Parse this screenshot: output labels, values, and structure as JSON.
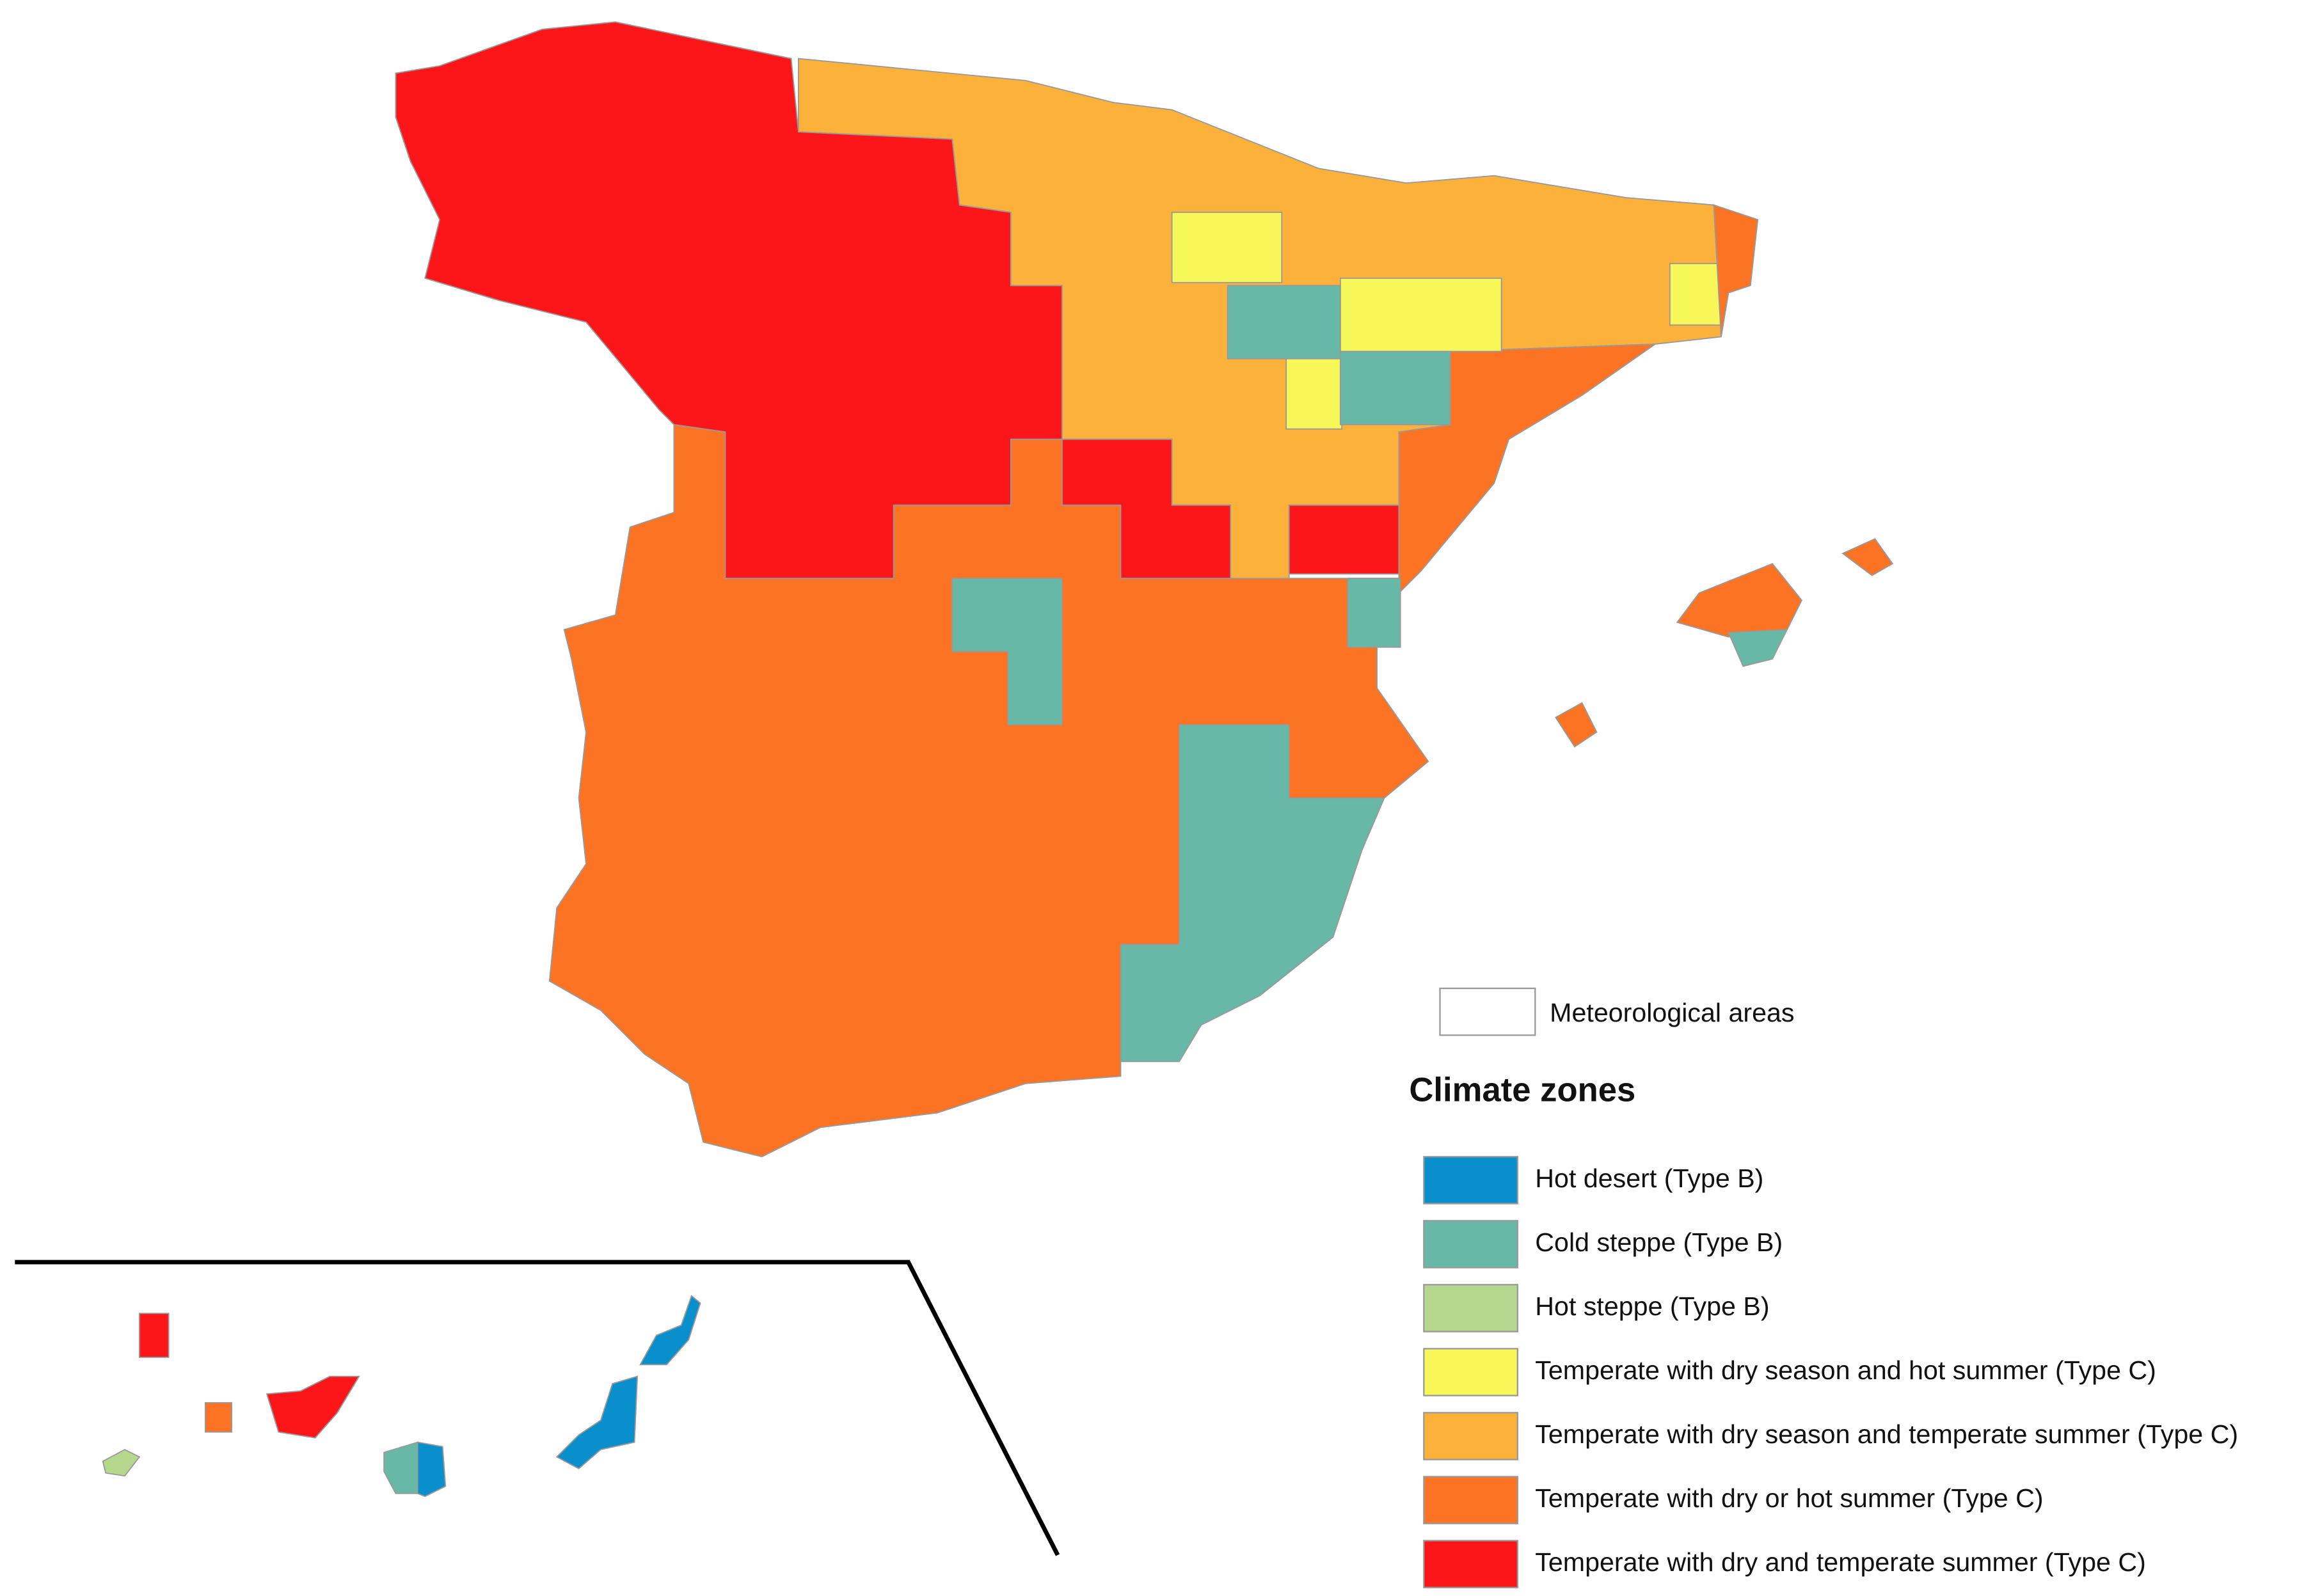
{
  "legend": {
    "boundary_label": "Meteorological areas",
    "title": "Climate zones",
    "items": [
      {
        "label": "Hot desert (Type B)",
        "color": "#0a8fcd"
      },
      {
        "label": "Cold steppe (Type B)",
        "color": "#68b8a8"
      },
      {
        "label": "Hot steppe (Type B)",
        "color": "#b6d88e"
      },
      {
        "label": "Temperate with dry season and hot summer (Type C)",
        "color": "#f7f75a"
      },
      {
        "label": "Temperate with dry season and temperate summer (Type C)",
        "color": "#fcb23a"
      },
      {
        "label": "Temperate with dry or hot summer (Type C)",
        "color": "#fc7324"
      },
      {
        "label": "Temperate with dry and temperate summer (Type C)",
        "color": "#fc1519"
      }
    ]
  }
}
